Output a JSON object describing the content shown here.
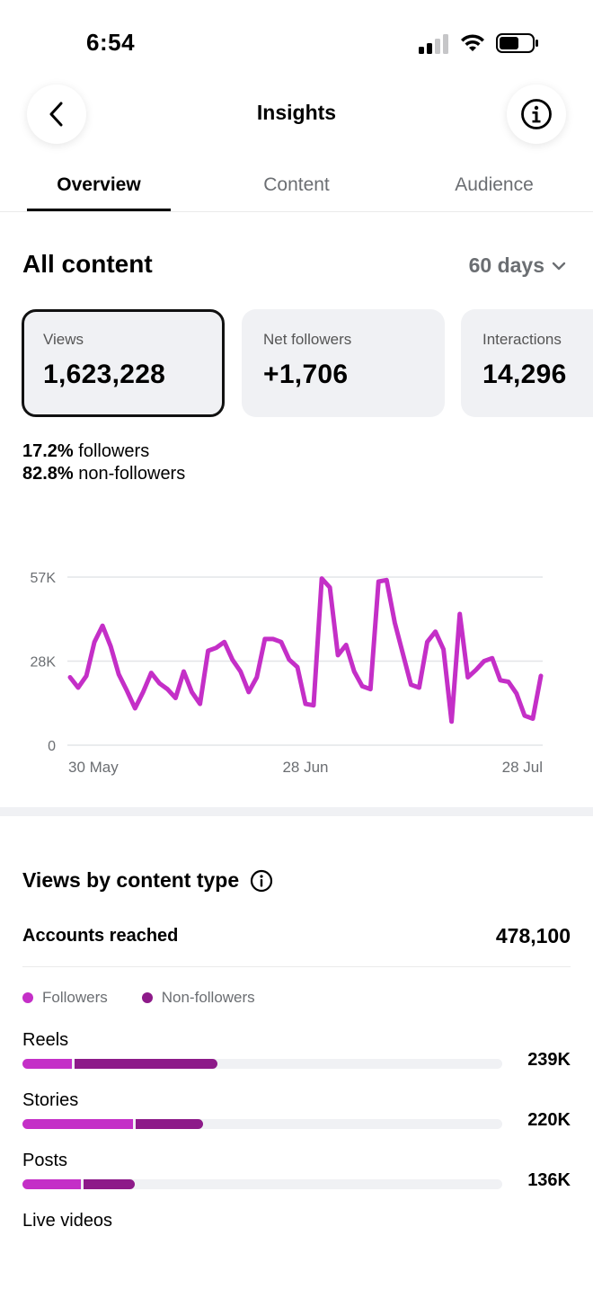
{
  "status": {
    "time": "6:54"
  },
  "header": {
    "title": "Insights"
  },
  "tabs": [
    {
      "label": "Overview",
      "active": true
    },
    {
      "label": "Content",
      "active": false
    },
    {
      "label": "Audience",
      "active": false
    }
  ],
  "section": {
    "title": "All content",
    "range": "60 days"
  },
  "cards": [
    {
      "label": "Views",
      "value": "1,623,228"
    },
    {
      "label": "Net followers",
      "value": "+1,706"
    },
    {
      "label": "Interactions",
      "value": "14,296"
    }
  ],
  "split": {
    "followers_pct": "17.2%",
    "followers_label": " followers",
    "nonfollowers_pct": "82.8%",
    "nonfollowers_label": " non-followers"
  },
  "chart_data": {
    "type": "line",
    "color": "#c42fc7",
    "y_ticks": [
      "57K",
      "28K",
      "0"
    ],
    "x_ticks": [
      "30 May",
      "28 Jun",
      "28 Jul"
    ],
    "ylim": [
      0,
      57000
    ],
    "grid": true,
    "values": [
      23000,
      19500,
      23500,
      35000,
      40500,
      33500,
      24000,
      18500,
      12500,
      18000,
      24500,
      21000,
      19000,
      16000,
      25000,
      18000,
      14000,
      32000,
      33000,
      35000,
      29000,
      25000,
      18000,
      23000,
      36000,
      36000,
      35000,
      29000,
      26500,
      14000,
      13500,
      56500,
      53500,
      30500,
      34000,
      25000,
      20000,
      19000,
      55500,
      56000,
      41500,
      31000,
      20500,
      19500,
      35000,
      38500,
      32500,
      8000,
      44500,
      23000,
      25500,
      28500,
      29500,
      22000,
      21500,
      17500,
      10000,
      9000,
      23500
    ]
  },
  "views_by_type": {
    "title": "Views by content type",
    "accounts_reached_label": "Accounts reached",
    "accounts_reached_value": "478,100",
    "legend_followers": "Followers",
    "legend_nonfollowers": "Non-followers",
    "color_followers": "#c42fc7",
    "color_nonfollowers": "#8d1a89",
    "rows": [
      {
        "label": "Reels",
        "value": "239K",
        "followers_frac": 0.103,
        "nonfollowers_frac": 0.298
      },
      {
        "label": "Stories",
        "value": "220K",
        "followers_frac": 0.23,
        "nonfollowers_frac": 0.14
      },
      {
        "label": "Posts",
        "value": "136K",
        "followers_frac": 0.121,
        "nonfollowers_frac": 0.108
      },
      {
        "label": "Live videos",
        "value": "",
        "followers_frac": 0,
        "nonfollowers_frac": 0
      }
    ]
  }
}
